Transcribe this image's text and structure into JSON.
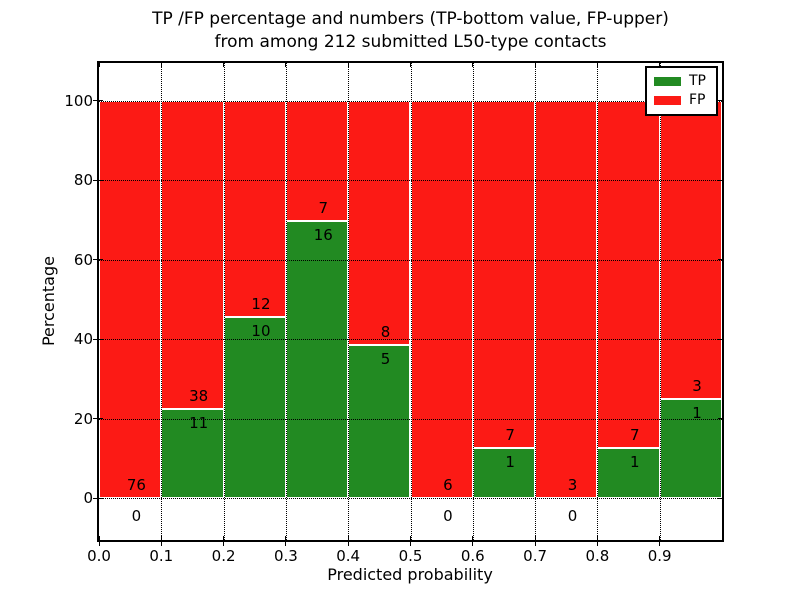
{
  "header": {
    "title_line1": "TP /FP percentage and numbers (TP-bottom value, FP-upper)",
    "title_line2": "from among 212 submitted L50-type contacts"
  },
  "axes": {
    "xlabel": "Predicted probability",
    "ylabel": "Percentage",
    "xticks": [
      "0.0",
      "0.1",
      "0.2",
      "0.3",
      "0.4",
      "0.5",
      "0.6",
      "0.7",
      "0.8",
      "0.9"
    ],
    "yticks": [
      0,
      20,
      40,
      60,
      80,
      100
    ],
    "grid": "dotted"
  },
  "legend": {
    "position": "upper right",
    "items": [
      {
        "label": "TP",
        "color": "#228a22"
      },
      {
        "label": "FP",
        "color": "#fc1a15"
      }
    ]
  },
  "chart_data": {
    "type": "bar",
    "stacked": true,
    "normalized": "each bin stacked to 100%",
    "title": "TP /FP percentage and numbers (TP-bottom value, FP-upper) from among 212 submitted L50-type contacts",
    "xlabel": "Predicted probability",
    "ylabel": "Percentage",
    "bin_edges": [
      0.0,
      0.1,
      0.2,
      0.3,
      0.4,
      0.5,
      0.6,
      0.7,
      0.8,
      0.9,
      1.0
    ],
    "total_contacts": 212,
    "series": [
      {
        "name": "TP",
        "color": "#228a22",
        "values": [
          0,
          11,
          10,
          16,
          5,
          0,
          1,
          0,
          1,
          1
        ]
      },
      {
        "name": "FP",
        "color": "#fc1a15",
        "values": [
          76,
          38,
          12,
          7,
          8,
          6,
          7,
          3,
          7,
          3
        ]
      }
    ],
    "tp_percent_of_bin": [
      0.0,
      22.4,
      45.5,
      69.6,
      38.5,
      0.0,
      12.5,
      0.0,
      12.5,
      25.0
    ],
    "ylim": [
      -11,
      110
    ],
    "xlim": [
      0.0,
      1.0
    ],
    "legend_position": "upper right"
  }
}
